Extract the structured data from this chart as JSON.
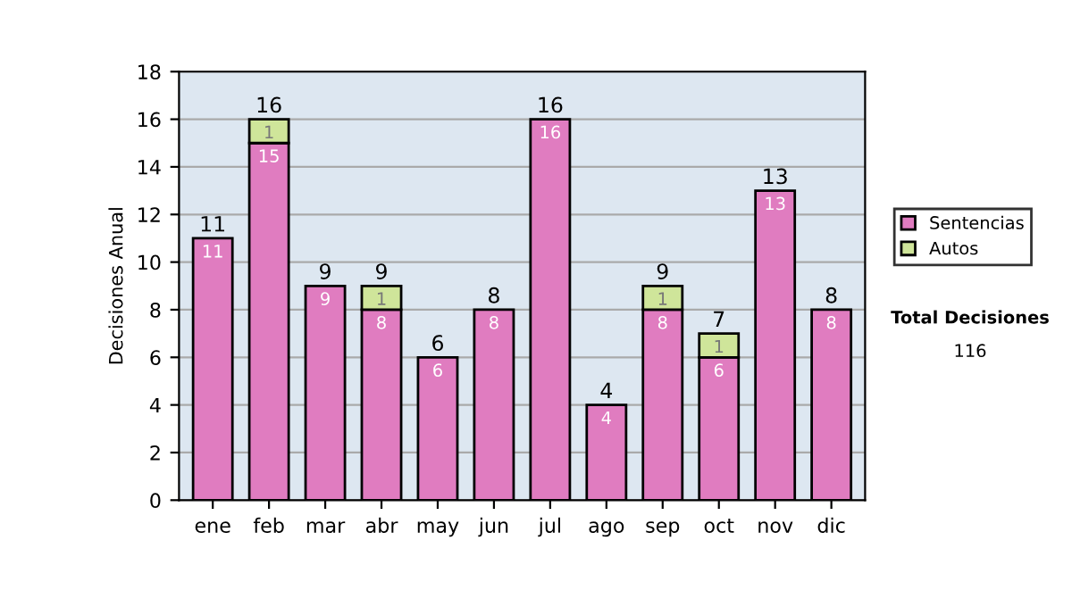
{
  "chart_data": {
    "type": "bar",
    "stacked": true,
    "ylabel": "Decisiones Anual",
    "categories": [
      "ene",
      "feb",
      "mar",
      "abr",
      "may",
      "jun",
      "jul",
      "ago",
      "sep",
      "oct",
      "nov",
      "dic"
    ],
    "series": [
      {
        "name": "Sentencias",
        "color": "#e07cc0",
        "values": [
          11,
          15,
          9,
          8,
          6,
          8,
          16,
          4,
          8,
          6,
          13,
          8
        ]
      },
      {
        "name": "Autos",
        "color": "#cfe59a",
        "values": [
          null,
          1,
          null,
          1,
          null,
          null,
          null,
          null,
          1,
          1,
          null,
          null
        ]
      }
    ],
    "data_labels": true,
    "totals": [
      "11",
      "16",
      "9",
      "9",
      "6",
      "8",
      "16",
      "4",
      "9",
      "7",
      "13",
      "8"
    ],
    "ylim": [
      0,
      18
    ],
    "yticks": [
      0,
      2,
      4,
      6,
      8,
      10,
      12,
      14,
      16,
      18
    ],
    "grid": "y",
    "legend": "right",
    "annotations": [
      "Total Decisiones",
      "116"
    ]
  }
}
